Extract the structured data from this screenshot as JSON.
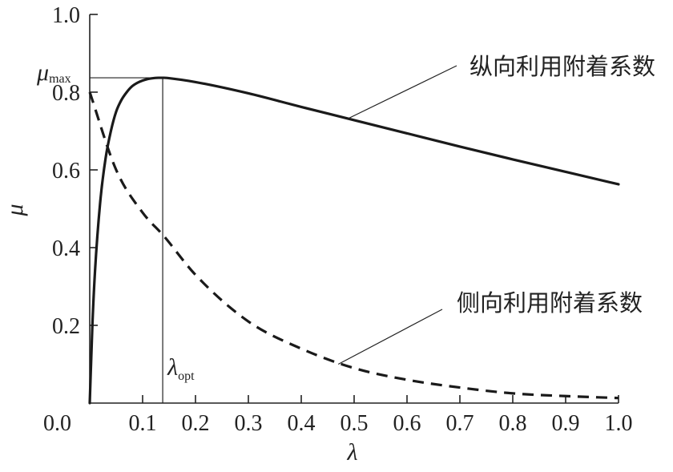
{
  "chart_data": {
    "type": "line",
    "xlabel": "λ",
    "ylabel": "μ",
    "xlim": [
      0.0,
      1.0
    ],
    "ylim": [
      0.0,
      1.0
    ],
    "xticks": [
      0.1,
      0.2,
      0.3,
      0.4,
      0.5,
      0.6,
      0.7,
      0.8,
      0.9,
      1.0
    ],
    "yticks": [
      0.2,
      0.4,
      0.6,
      0.8,
      1.0
    ],
    "x_tick_labels": [
      "0.1",
      "0.2",
      "0.3",
      "0.4",
      "0.5",
      "0.6",
      "0.7",
      "0.8",
      "0.9",
      "1.0"
    ],
    "y_tick_labels": [
      "0.2",
      "0.4",
      "0.6",
      "0.8",
      "1.0"
    ],
    "origin_label": "0.0",
    "grid": false,
    "series": [
      {
        "name": "纵向利用附着系数",
        "style": "solid",
        "color": "#1a1a1a",
        "x": [
          0,
          0.005,
          0.01,
          0.02,
          0.03,
          0.04,
          0.05,
          0.06,
          0.07,
          0.08,
          0.09,
          0.1,
          0.11,
          0.12,
          0.13,
          0.14,
          0.15,
          0.2,
          0.3,
          0.4,
          0.5,
          0.6,
          0.7,
          0.8,
          0.9,
          1.0
        ],
        "y": [
          0,
          0.2,
          0.34,
          0.52,
          0.63,
          0.7,
          0.75,
          0.78,
          0.8,
          0.815,
          0.824,
          0.83,
          0.834,
          0.836,
          0.837,
          0.837,
          0.836,
          0.826,
          0.797,
          0.762,
          0.728,
          0.694,
          0.66,
          0.627,
          0.595,
          0.563
        ]
      },
      {
        "name": "侧向利用附着系数",
        "style": "dashed",
        "color": "#1a1a1a",
        "x": [
          0,
          0.05,
          0.1,
          0.14,
          0.2,
          0.3,
          0.4,
          0.5,
          0.6,
          0.7,
          0.8,
          0.9,
          1.0
        ],
        "y": [
          0.8,
          0.6,
          0.49,
          0.43,
          0.33,
          0.21,
          0.14,
          0.09,
          0.06,
          0.04,
          0.025,
          0.018,
          0.013
        ]
      }
    ],
    "annotations": {
      "mu_max": {
        "main": "μ",
        "sub": "max",
        "value": 0.837
      },
      "lambda_opt": {
        "main": "λ",
        "sub": "opt",
        "value": 0.138
      }
    }
  }
}
